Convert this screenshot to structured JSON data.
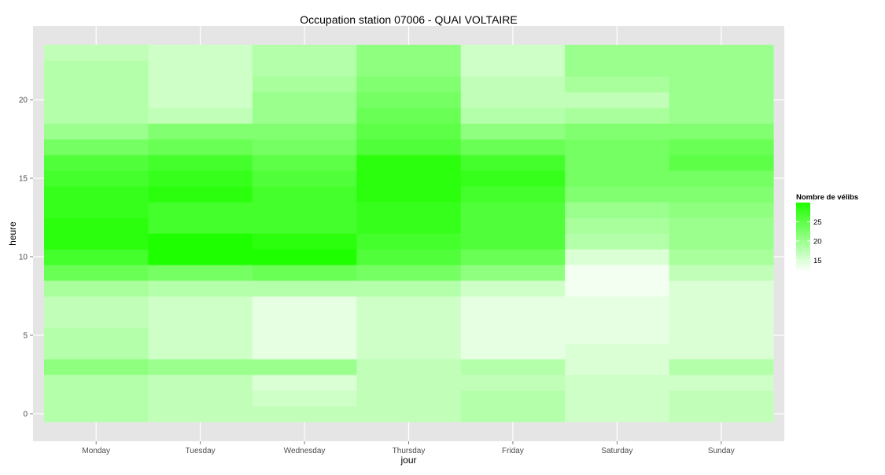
{
  "chart_data": {
    "type": "heatmap",
    "title": "Occupation station 07006 - QUAI VOLTAIRE",
    "xlabel": "jour",
    "ylabel": "heure",
    "categories": [
      "Monday",
      "Tuesday",
      "Wednesday",
      "Thursday",
      "Friday",
      "Saturday",
      "Sunday"
    ],
    "hours": [
      0,
      1,
      2,
      3,
      4,
      5,
      6,
      7,
      8,
      9,
      10,
      11,
      12,
      13,
      14,
      15,
      16,
      17,
      18,
      19,
      20,
      21,
      22,
      23
    ],
    "y_ticks": [
      0,
      5,
      10,
      15,
      20
    ],
    "ylim": [
      -0.5,
      23.5
    ],
    "values": [
      [
        18,
        17,
        17,
        17,
        18,
        16,
        17
      ],
      [
        18,
        17,
        16,
        17,
        18,
        16,
        17
      ],
      [
        18,
        17,
        15,
        17,
        17,
        16,
        16
      ],
      [
        21,
        20,
        20,
        17,
        18,
        15,
        18
      ],
      [
        18,
        16,
        14,
        16,
        14,
        15,
        15
      ],
      [
        18,
        16,
        14,
        16,
        14,
        14,
        15
      ],
      [
        17,
        16,
        14,
        16,
        14,
        14,
        15
      ],
      [
        17,
        16,
        14,
        16,
        14,
        14,
        15
      ],
      [
        19,
        18,
        18,
        18,
        16,
        13,
        15
      ],
      [
        24,
        23,
        24,
        23,
        21,
        13,
        17
      ],
      [
        27,
        30,
        30,
        26,
        24,
        15,
        19
      ],
      [
        29,
        30,
        29,
        27,
        26,
        18,
        20
      ],
      [
        29,
        27,
        27,
        28,
        26,
        19,
        20
      ],
      [
        28,
        27,
        27,
        28,
        26,
        20,
        21
      ],
      [
        28,
        29,
        27,
        29,
        27,
        22,
        22
      ],
      [
        27,
        28,
        26,
        29,
        28,
        23,
        23
      ],
      [
        26,
        27,
        25,
        29,
        27,
        23,
        25
      ],
      [
        23,
        24,
        23,
        26,
        24,
        23,
        24
      ],
      [
        20,
        22,
        22,
        25,
        21,
        22,
        22
      ],
      [
        18,
        17,
        20,
        24,
        18,
        19,
        20
      ],
      [
        18,
        16,
        20,
        23,
        17,
        17,
        20
      ],
      [
        18,
        16,
        19,
        22,
        17,
        19,
        20
      ],
      [
        18,
        16,
        18,
        21,
        16,
        20,
        20
      ],
      [
        17,
        16,
        18,
        21,
        16,
        20,
        20
      ]
    ],
    "color_range": [
      12,
      30
    ],
    "color_low": "#ffffff",
    "color_high": "#1eff00",
    "legend": {
      "title": "Nombre de vélibs",
      "ticks": [
        15,
        20,
        25
      ],
      "position": "right"
    },
    "grid": true,
    "panel_bg": "#e5e5e5",
    "grid_color": "#ffffff"
  }
}
